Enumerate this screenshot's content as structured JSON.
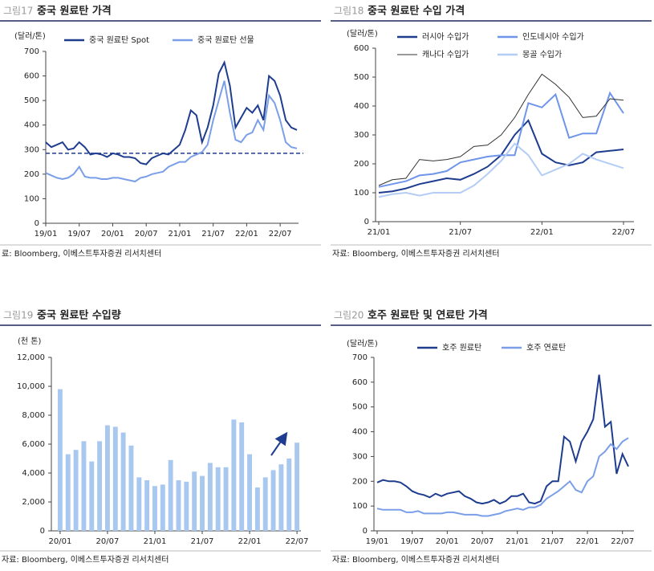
{
  "chart_data": [
    {
      "type": "line",
      "figure_label": "그림17",
      "title": "중국 원료탄 가격",
      "y_label": "(달러/톤)",
      "source": "료: Bloomberg, 이베스트투자증권 리서치센터",
      "x": [
        "19/01",
        "19/02",
        "19/03",
        "19/04",
        "19/05",
        "19/06",
        "19/07",
        "19/08",
        "19/09",
        "19/10",
        "19/11",
        "19/12",
        "20/01",
        "20/02",
        "20/03",
        "20/04",
        "20/05",
        "20/06",
        "20/07",
        "20/08",
        "20/09",
        "20/10",
        "20/11",
        "20/12",
        "21/01",
        "21/02",
        "21/03",
        "21/04",
        "21/05",
        "21/06",
        "21/07",
        "21/08",
        "21/09",
        "21/10",
        "21/11",
        "21/12",
        "22/01",
        "22/02",
        "22/03",
        "22/04",
        "22/05",
        "22/06",
        "22/07",
        "22/08",
        "22/09",
        "22/10"
      ],
      "xticks": [
        "19/01",
        "19/07",
        "20/01",
        "20/07",
        "21/01",
        "21/07",
        "22/01",
        "22/07"
      ],
      "ylim": [
        0,
        700
      ],
      "yticks": [
        0,
        100,
        200,
        300,
        400,
        500,
        600,
        700
      ],
      "reference_line": 285,
      "reference_color": "#1f3d8f",
      "series": [
        {
          "name": "중국 원료탄 Spot",
          "color": "#1f3d8f",
          "values": [
            330,
            310,
            320,
            330,
            300,
            305,
            330,
            310,
            280,
            285,
            280,
            270,
            285,
            280,
            270,
            270,
            265,
            245,
            240,
            265,
            275,
            285,
            280,
            300,
            320,
            380,
            460,
            440,
            330,
            390,
            480,
            610,
            655,
            560,
            390,
            430,
            470,
            450,
            480,
            420,
            600,
            580,
            520,
            420,
            390,
            380
          ]
        },
        {
          "name": "중국 원료탄 선물",
          "color": "#7a9fe8",
          "values": [
            205,
            195,
            185,
            180,
            185,
            200,
            230,
            190,
            185,
            185,
            180,
            180,
            185,
            185,
            180,
            175,
            170,
            185,
            190,
            200,
            205,
            210,
            230,
            240,
            250,
            250,
            270,
            280,
            290,
            320,
            420,
            500,
            580,
            450,
            340,
            330,
            360,
            370,
            420,
            380,
            520,
            490,
            420,
            330,
            310,
            305
          ]
        }
      ]
    },
    {
      "type": "line",
      "figure_label": "그림18",
      "title": "중국 원료탄 수입 가격",
      "y_label": "(달러/톤)",
      "source": "자료: Bloomberg, 이베스트투자증권 리서치센터",
      "x": [
        "21/01",
        "21/02",
        "21/03",
        "21/04",
        "21/05",
        "21/06",
        "21/07",
        "21/08",
        "21/09",
        "21/10",
        "21/11",
        "21/12",
        "22/01",
        "22/02",
        "22/03",
        "22/04",
        "22/05",
        "22/06",
        "22/07"
      ],
      "xticks": [
        "21/01",
        "21/07",
        "22/01",
        "22/07"
      ],
      "ylim": [
        0,
        600
      ],
      "yticks": [
        0,
        100,
        200,
        300,
        400,
        500,
        600
      ],
      "series": [
        {
          "name": "러시아 수입가",
          "color": "#1f3d8f",
          "values": [
            100,
            105,
            115,
            130,
            140,
            150,
            145,
            165,
            190,
            230,
            300,
            350,
            235,
            205,
            195,
            205,
            240,
            245,
            250
          ]
        },
        {
          "name": "인도네시아 수입가",
          "color": "#6f95ea",
          "values": [
            120,
            130,
            140,
            160,
            165,
            175,
            205,
            215,
            225,
            230,
            230,
            410,
            395,
            440,
            290,
            305,
            305,
            445,
            375
          ]
        },
        {
          "name": "캐나다 수입가",
          "color": "#333333",
          "values": [
            125,
            145,
            150,
            215,
            210,
            215,
            225,
            260,
            265,
            300,
            360,
            440,
            510,
            475,
            430,
            360,
            365,
            425,
            420
          ]
        },
        {
          "name": "몽골 수입가",
          "color": "#b4cdf5",
          "values": [
            85,
            95,
            100,
            90,
            100,
            100,
            100,
            125,
            165,
            210,
            270,
            230,
            160,
            180,
            200,
            235,
            215,
            200,
            185
          ]
        }
      ]
    },
    {
      "type": "bar",
      "figure_label": "그림19",
      "title": "중국 원료탄 수입량",
      "y_label": "(천 톤)",
      "source": "자료: Bloomberg, 이베스트투자증권 리서치센터",
      "x": [
        "20/01",
        "20/02",
        "20/03",
        "20/04",
        "20/05",
        "20/06",
        "20/07",
        "20/08",
        "20/09",
        "20/10",
        "20/11",
        "20/12",
        "21/01",
        "21/02",
        "21/03",
        "21/04",
        "21/05",
        "21/06",
        "21/07",
        "21/08",
        "21/09",
        "21/10",
        "21/11",
        "21/12",
        "22/01",
        "22/02",
        "22/03",
        "22/04",
        "22/05",
        "22/06",
        "22/07"
      ],
      "xticks": [
        "20/01",
        "20/07",
        "21/01",
        "21/07",
        "22/01",
        "22/07"
      ],
      "ylim": [
        0,
        12000
      ],
      "yticks": [
        0,
        {
          "value": 2000,
          "label": "2,000"
        },
        {
          "value": 4000,
          "label": "4,000"
        },
        {
          "value": 6000,
          "label": "6,000"
        },
        {
          "value": 8000,
          "label": "8,000"
        },
        {
          "value": 10000,
          "label": "10,000"
        },
        {
          "value": 12000,
          "label": "12,000"
        }
      ],
      "color": "#a8c8f0",
      "values": [
        9800,
        5300,
        5600,
        6200,
        4800,
        6200,
        7300,
        7200,
        6800,
        5900,
        3700,
        3500,
        3100,
        3200,
        4900,
        3500,
        3400,
        4100,
        3800,
        4700,
        4400,
        4400,
        7700,
        7500,
        5300,
        3000,
        3700,
        4200,
        4600,
        5000,
        6100
      ]
    },
    {
      "type": "line",
      "figure_label": "그림20",
      "title": "호주 원료탄 및 연료탄 가격",
      "y_label": "(달러/톤)",
      "source": "자료: Bloomberg, 이베스트투자증권 리서치센터",
      "x": [
        "19/01",
        "19/02",
        "19/03",
        "19/04",
        "19/05",
        "19/06",
        "19/07",
        "19/08",
        "19/09",
        "19/10",
        "19/11",
        "19/12",
        "20/01",
        "20/02",
        "20/03",
        "20/04",
        "20/05",
        "20/06",
        "20/07",
        "20/08",
        "20/09",
        "20/10",
        "20/11",
        "20/12",
        "21/01",
        "21/02",
        "21/03",
        "21/04",
        "21/05",
        "21/06",
        "21/07",
        "21/08",
        "21/09",
        "21/10",
        "21/11",
        "21/12",
        "22/01",
        "22/02",
        "22/03",
        "22/04",
        "22/05",
        "22/06",
        "22/07",
        "22/08"
      ],
      "xticks": [
        "19/01",
        "19/07",
        "20/01",
        "20/07",
        "21/01",
        "21/07",
        "22/01",
        "22/07"
      ],
      "ylim": [
        0,
        700
      ],
      "yticks": [
        0,
        100,
        200,
        300,
        400,
        500,
        600,
        700
      ],
      "series": [
        {
          "name": "호주 원료탄",
          "color": "#1f3d8f",
          "values": [
            195,
            205,
            200,
            200,
            195,
            180,
            160,
            150,
            145,
            135,
            150,
            140,
            150,
            155,
            160,
            140,
            130,
            115,
            110,
            115,
            125,
            110,
            120,
            140,
            140,
            150,
            115,
            110,
            120,
            180,
            200,
            200,
            380,
            360,
            280,
            360,
            400,
            450,
            630,
            420,
            440,
            230,
            310,
            260
          ]
        },
        {
          "name": "호주 연료탄",
          "color": "#7a9fe8",
          "values": [
            90,
            85,
            85,
            85,
            85,
            75,
            75,
            80,
            70,
            70,
            70,
            70,
            75,
            75,
            70,
            65,
            65,
            65,
            60,
            60,
            65,
            70,
            80,
            85,
            90,
            85,
            95,
            95,
            105,
            130,
            145,
            160,
            180,
            200,
            165,
            155,
            200,
            220,
            300,
            320,
            350,
            330,
            360,
            375
          ]
        }
      ]
    }
  ]
}
